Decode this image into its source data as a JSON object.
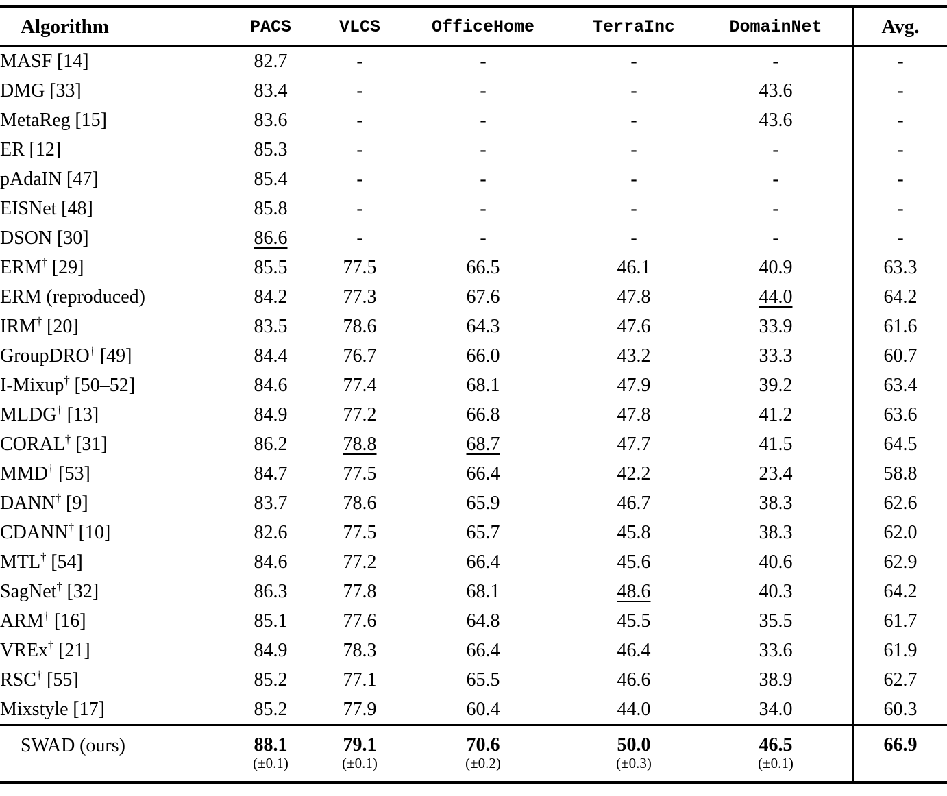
{
  "table": {
    "columns": [
      {
        "label": "Algorithm"
      },
      {
        "label": "PACS"
      },
      {
        "label": "VLCS"
      },
      {
        "label": "OfficeHome"
      },
      {
        "label": "TerraInc"
      },
      {
        "label": "DomainNet"
      },
      {
        "label": "Avg."
      }
    ],
    "rows": [
      {
        "name": "MASF",
        "dagger": "",
        "ref": "[14]",
        "cells": [
          {
            "t": "82.7"
          },
          {
            "t": "-"
          },
          {
            "t": "-"
          },
          {
            "t": "-"
          },
          {
            "t": "-"
          },
          {
            "t": "-"
          }
        ]
      },
      {
        "name": "DMG",
        "dagger": "",
        "ref": "[33]",
        "cells": [
          {
            "t": "83.4"
          },
          {
            "t": "-"
          },
          {
            "t": "-"
          },
          {
            "t": "-"
          },
          {
            "t": "43.6"
          },
          {
            "t": "-"
          }
        ]
      },
      {
        "name": "MetaReg",
        "dagger": "",
        "ref": "[15]",
        "cells": [
          {
            "t": "83.6"
          },
          {
            "t": "-"
          },
          {
            "t": "-"
          },
          {
            "t": "-"
          },
          {
            "t": "43.6"
          },
          {
            "t": "-"
          }
        ]
      },
      {
        "name": "ER",
        "dagger": "",
        "ref": "[12]",
        "cells": [
          {
            "t": "85.3"
          },
          {
            "t": "-"
          },
          {
            "t": "-"
          },
          {
            "t": "-"
          },
          {
            "t": "-"
          },
          {
            "t": "-"
          }
        ]
      },
      {
        "name": "pAdaIN",
        "dagger": "",
        "ref": "[47]",
        "cells": [
          {
            "t": "85.4"
          },
          {
            "t": "-"
          },
          {
            "t": "-"
          },
          {
            "t": "-"
          },
          {
            "t": "-"
          },
          {
            "t": "-"
          }
        ]
      },
      {
        "name": "EISNet",
        "dagger": "",
        "ref": "[48]",
        "cells": [
          {
            "t": "85.8"
          },
          {
            "t": "-"
          },
          {
            "t": "-"
          },
          {
            "t": "-"
          },
          {
            "t": "-"
          },
          {
            "t": "-"
          }
        ]
      },
      {
        "name": "DSON",
        "dagger": "",
        "ref": "[30]",
        "cells": [
          {
            "t": "86.6",
            "u": 1
          },
          {
            "t": "-"
          },
          {
            "t": "-"
          },
          {
            "t": "-"
          },
          {
            "t": "-"
          },
          {
            "t": "-"
          }
        ]
      },
      {
        "name": "ERM",
        "dagger": "†",
        "ref": "[29]",
        "cells": [
          {
            "t": "85.5"
          },
          {
            "t": "77.5"
          },
          {
            "t": "66.5"
          },
          {
            "t": "46.1"
          },
          {
            "t": "40.9"
          },
          {
            "t": "63.3"
          }
        ]
      },
      {
        "name": "ERM",
        "dagger": "",
        "ref": "(reproduced)",
        "cells": [
          {
            "t": "84.2"
          },
          {
            "t": "77.3"
          },
          {
            "t": "67.6"
          },
          {
            "t": "47.8"
          },
          {
            "t": "44.0",
            "u": 1
          },
          {
            "t": "64.2"
          }
        ]
      },
      {
        "name": "IRM",
        "dagger": "†",
        "ref": "[20]",
        "cells": [
          {
            "t": "83.5"
          },
          {
            "t": "78.6"
          },
          {
            "t": "64.3"
          },
          {
            "t": "47.6"
          },
          {
            "t": "33.9"
          },
          {
            "t": "61.6"
          }
        ]
      },
      {
        "name": "GroupDRO",
        "dagger": "†",
        "ref": "[49]",
        "cells": [
          {
            "t": "84.4"
          },
          {
            "t": "76.7"
          },
          {
            "t": "66.0"
          },
          {
            "t": "43.2"
          },
          {
            "t": "33.3"
          },
          {
            "t": "60.7"
          }
        ]
      },
      {
        "name": "I-Mixup",
        "dagger": "†",
        "ref": "[50–52]",
        "cells": [
          {
            "t": "84.6"
          },
          {
            "t": "77.4"
          },
          {
            "t": "68.1"
          },
          {
            "t": "47.9"
          },
          {
            "t": "39.2"
          },
          {
            "t": "63.4"
          }
        ]
      },
      {
        "name": "MLDG",
        "dagger": "†",
        "ref": "[13]",
        "cells": [
          {
            "t": "84.9"
          },
          {
            "t": "77.2"
          },
          {
            "t": "66.8"
          },
          {
            "t": "47.8"
          },
          {
            "t": "41.2"
          },
          {
            "t": "63.6"
          }
        ]
      },
      {
        "name": "CORAL",
        "dagger": "†",
        "ref": "[31]",
        "cells": [
          {
            "t": "86.2"
          },
          {
            "t": "78.8",
            "u": 1
          },
          {
            "t": "68.7",
            "u": 1
          },
          {
            "t": "47.7"
          },
          {
            "t": "41.5"
          },
          {
            "t": "64.5"
          }
        ]
      },
      {
        "name": "MMD",
        "dagger": "†",
        "ref": "[53]",
        "cells": [
          {
            "t": "84.7"
          },
          {
            "t": "77.5"
          },
          {
            "t": "66.4"
          },
          {
            "t": "42.2"
          },
          {
            "t": "23.4"
          },
          {
            "t": "58.8"
          }
        ]
      },
      {
        "name": "DANN",
        "dagger": "†",
        "ref": "[9]",
        "cells": [
          {
            "t": "83.7"
          },
          {
            "t": "78.6"
          },
          {
            "t": "65.9"
          },
          {
            "t": "46.7"
          },
          {
            "t": "38.3"
          },
          {
            "t": "62.6"
          }
        ]
      },
      {
        "name": "CDANN",
        "dagger": "†",
        "ref": "[10]",
        "cells": [
          {
            "t": "82.6"
          },
          {
            "t": "77.5"
          },
          {
            "t": "65.7"
          },
          {
            "t": "45.8"
          },
          {
            "t": "38.3"
          },
          {
            "t": "62.0"
          }
        ]
      },
      {
        "name": "MTL",
        "dagger": "†",
        "ref": "[54]",
        "cells": [
          {
            "t": "84.6"
          },
          {
            "t": "77.2"
          },
          {
            "t": "66.4"
          },
          {
            "t": "45.6"
          },
          {
            "t": "40.6"
          },
          {
            "t": "62.9"
          }
        ]
      },
      {
        "name": "SagNet",
        "dagger": "†",
        "ref": "[32]",
        "cells": [
          {
            "t": "86.3"
          },
          {
            "t": "77.8"
          },
          {
            "t": "68.1"
          },
          {
            "t": "48.6",
            "u": 1
          },
          {
            "t": "40.3"
          },
          {
            "t": "64.2"
          }
        ]
      },
      {
        "name": "ARM",
        "dagger": "†",
        "ref": "[16]",
        "cells": [
          {
            "t": "85.1"
          },
          {
            "t": "77.6"
          },
          {
            "t": "64.8"
          },
          {
            "t": "45.5"
          },
          {
            "t": "35.5"
          },
          {
            "t": "61.7"
          }
        ]
      },
      {
        "name": "VREx",
        "dagger": "†",
        "ref": "[21]",
        "cells": [
          {
            "t": "84.9"
          },
          {
            "t": "78.3"
          },
          {
            "t": "66.4"
          },
          {
            "t": "46.4"
          },
          {
            "t": "33.6"
          },
          {
            "t": "61.9"
          }
        ]
      },
      {
        "name": "RSC",
        "dagger": "†",
        "ref": "[55]",
        "cells": [
          {
            "t": "85.2"
          },
          {
            "t": "77.1"
          },
          {
            "t": "65.5"
          },
          {
            "t": "46.6"
          },
          {
            "t": "38.9"
          },
          {
            "t": "62.7"
          }
        ]
      },
      {
        "name": "Mixstyle",
        "dagger": "",
        "ref": "[17]",
        "cells": [
          {
            "t": "85.2"
          },
          {
            "t": "77.9"
          },
          {
            "t": "60.4"
          },
          {
            "t": "44.0"
          },
          {
            "t": "34.0"
          },
          {
            "t": "60.3"
          }
        ]
      }
    ],
    "swad": {
      "name": "SWAD",
      "ref": "(ours)",
      "cells": [
        {
          "t": "88.1",
          "pm": "(±0.1)"
        },
        {
          "t": "79.1",
          "pm": "(±0.1)"
        },
        {
          "t": "70.6",
          "pm": "(±0.2)"
        },
        {
          "t": "50.0",
          "pm": "(±0.3)"
        },
        {
          "t": "46.5",
          "pm": "(±0.1)"
        },
        {
          "t": "66.9",
          "pm": ""
        }
      ]
    }
  }
}
